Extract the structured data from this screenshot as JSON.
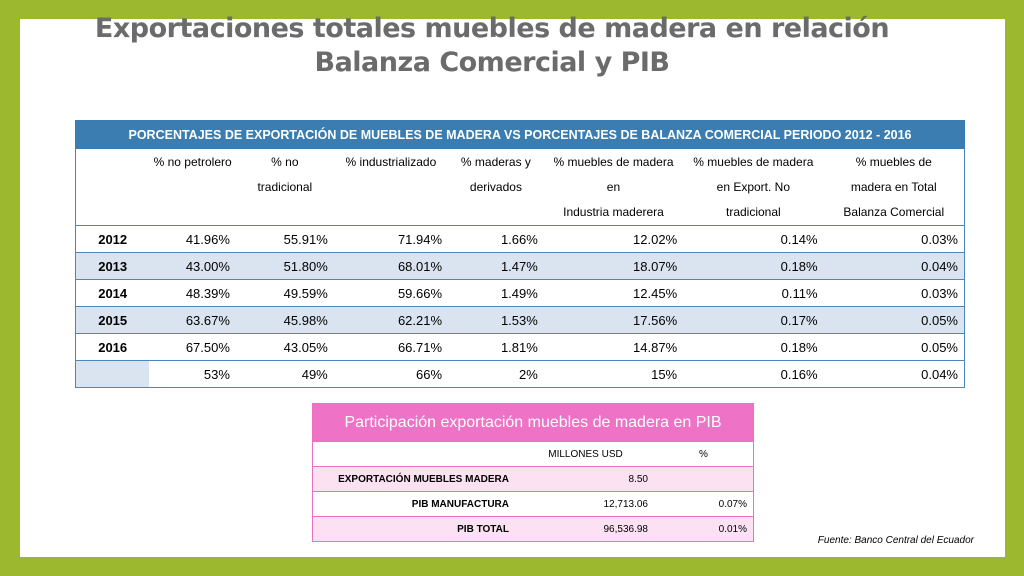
{
  "title": {
    "line1": "Exportaciones totales muebles de madera en relación",
    "line2": "Balanza Comercial y PIB"
  },
  "table1": {
    "header": "PORCENTAJES DE EXPORTACIÓN DE MUEBLES DE MADERA VS PORCENTAJES DE BALANZA COMERCIAL PERIODO 2012 - 2016",
    "columns": [
      "",
      "% no petrolero",
      "% no tradicional",
      "% industrializado",
      "% maderas y derivados",
      "% muebles de madera en Industria maderera",
      "% muebles de madera en Export. No tradicional",
      "% muebles de madera en Total Balanza Comercial"
    ],
    "column_lines": [
      [
        ""
      ],
      [
        "% no petrolero"
      ],
      [
        "% no",
        "tradicional"
      ],
      [
        "% industrializado"
      ],
      [
        "% maderas y",
        "derivados"
      ],
      [
        "% muebles de madera",
        "en",
        "Industria maderera"
      ],
      [
        "% muebles de madera",
        "en Export. No",
        "tradicional"
      ],
      [
        "% muebles de",
        "madera en Total",
        "Balanza Comercial"
      ]
    ],
    "rows": [
      [
        "2012",
        "41.96%",
        "55.91%",
        "71.94%",
        "1.66%",
        "12.02%",
        "0.14%",
        "0.03%"
      ],
      [
        "2013",
        "43.00%",
        "51.80%",
        "68.01%",
        "1.47%",
        "18.07%",
        "0.18%",
        "0.04%"
      ],
      [
        "2014",
        "48.39%",
        "49.59%",
        "59.66%",
        "1.49%",
        "12.45%",
        "0.11%",
        "0.03%"
      ],
      [
        "2015",
        "63.67%",
        "45.98%",
        "62.21%",
        "1.53%",
        "17.56%",
        "0.17%",
        "0.05%"
      ],
      [
        "2016",
        "67.50%",
        "43.05%",
        "66.71%",
        "1.81%",
        "14.87%",
        "0.18%",
        "0.05%"
      ],
      [
        "",
        "53%",
        "49%",
        "66%",
        "2%",
        "15%",
        "0.16%",
        "0.04%"
      ]
    ]
  },
  "table2": {
    "header": "Participación exportación muebles de madera en PIB",
    "columns": [
      "",
      "MILLONES USD",
      "%"
    ],
    "rows": [
      [
        "EXPORTACIÓN MUEBLES MADERA",
        "8.50",
        ""
      ],
      [
        "PIB MANUFACTURA",
        "12,713.06",
        "0.07%"
      ],
      [
        "PIB TOTAL",
        "96,536.98",
        "0.01%"
      ]
    ]
  },
  "source": "Fuente: Banco Central del Ecuador",
  "colors": {
    "frame": "#9cb82e",
    "table1_header": "#3b7db0",
    "table2_header": "#ee72c6",
    "title": "#6b6b6b"
  }
}
